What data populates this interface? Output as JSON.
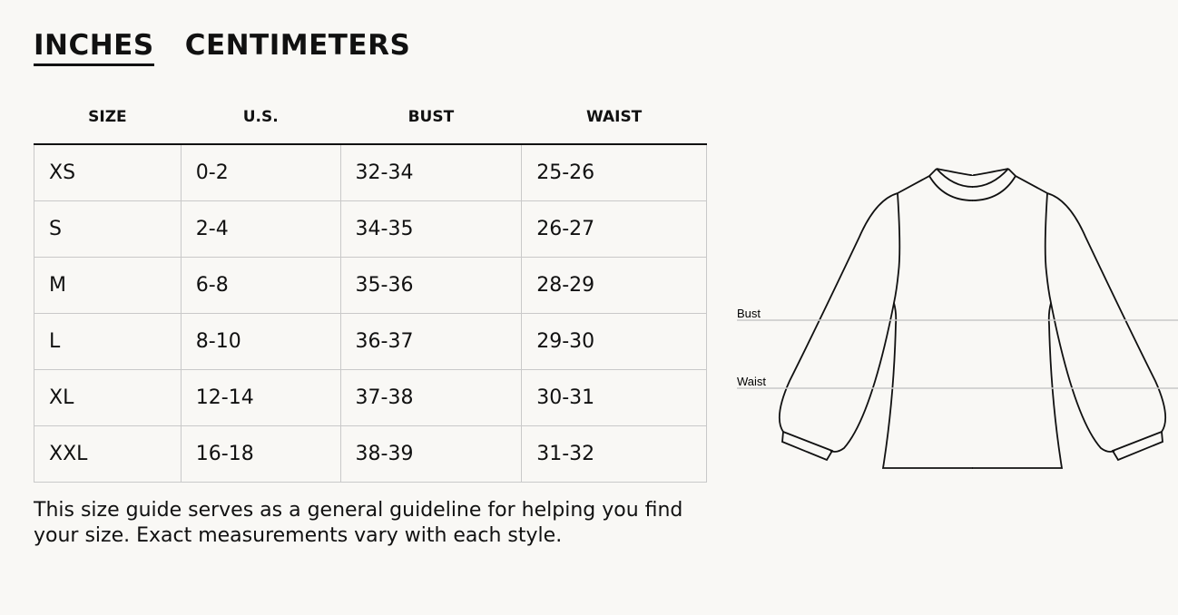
{
  "unit_tabs": [
    {
      "label": "INCHES",
      "active": true
    },
    {
      "label": "CENTIMETERS",
      "active": false
    }
  ],
  "table": {
    "headers": [
      "SIZE",
      "U.S.",
      "BUST",
      "WAIST"
    ],
    "rows": [
      [
        "XS",
        "0-2",
        "32-34",
        "25-26"
      ],
      [
        "S",
        "2-4",
        "34-35",
        "26-27"
      ],
      [
        "M",
        "6-8",
        "35-36",
        "28-29"
      ],
      [
        "L",
        "8-10",
        "36-37",
        "29-30"
      ],
      [
        "XL",
        "12-14",
        "37-38",
        "30-31"
      ],
      [
        "XXL",
        "16-18",
        "38-39",
        "31-32"
      ]
    ]
  },
  "note": "This size guide serves as a general guideline for helping you find your size. Exact measurements vary with each style.",
  "diagram": {
    "bust_label": "Bust",
    "waist_label": "Waist"
  }
}
